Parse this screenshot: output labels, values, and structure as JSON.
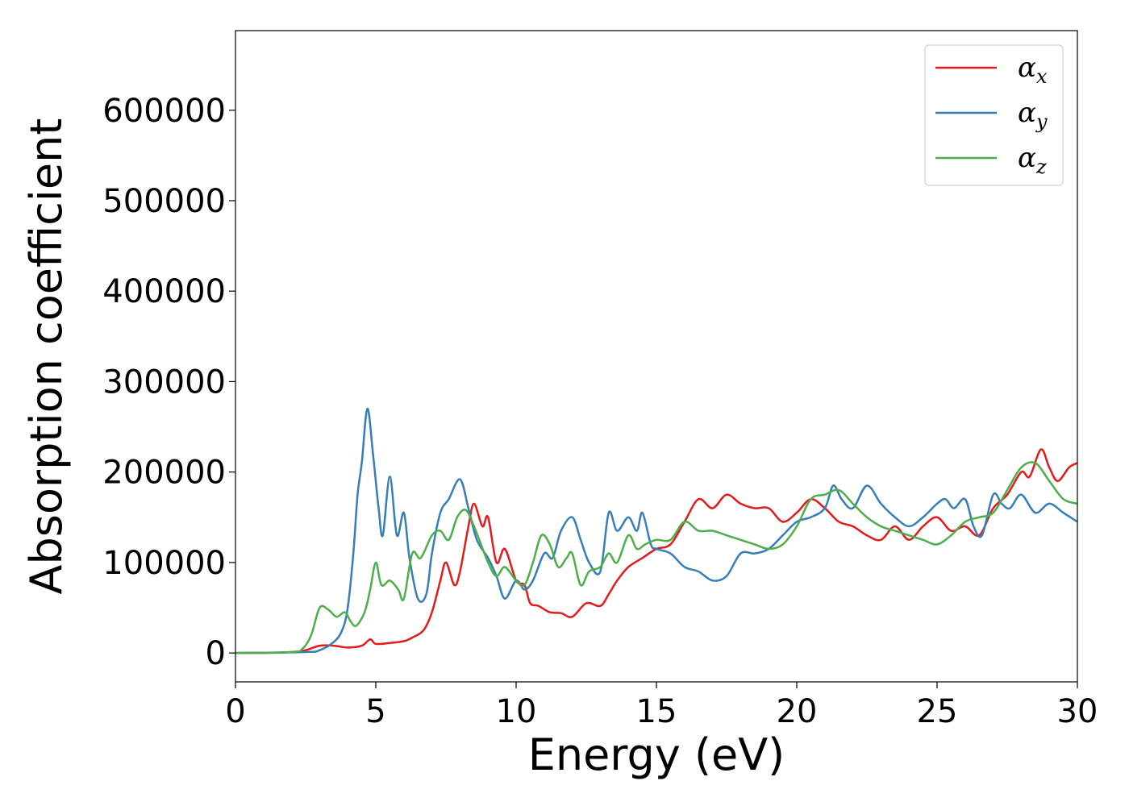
{
  "chart_data": {
    "type": "line",
    "title": "",
    "xlabel": "Energy (eV)",
    "ylabel": "Absorption coefficient",
    "xlim": [
      0,
      30
    ],
    "ylim": [
      -32000,
      688000
    ],
    "xticks": [
      0,
      5,
      10,
      15,
      20,
      25,
      30
    ],
    "xtick_labels": [
      "0",
      "5",
      "10",
      "15",
      "20",
      "25",
      "30"
    ],
    "yticks": [
      0,
      100000,
      200000,
      300000,
      400000,
      500000,
      600000
    ],
    "ytick_labels": [
      "0",
      "100000",
      "200000",
      "300000",
      "400000",
      "500000",
      "600000"
    ],
    "grid": false,
    "legend_position": "top-right",
    "series": [
      {
        "name": "α",
        "subscript": "x",
        "color": "#e41a1c",
        "points": [
          [
            0,
            0
          ],
          [
            1,
            0
          ],
          [
            2,
            1000
          ],
          [
            2.5,
            3000
          ],
          [
            3,
            8000
          ],
          [
            3.5,
            8000
          ],
          [
            4,
            6000
          ],
          [
            4.5,
            8000
          ],
          [
            4.8,
            15000
          ],
          [
            5,
            10000
          ],
          [
            5.5,
            11000
          ],
          [
            6,
            13000
          ],
          [
            6.3,
            17000
          ],
          [
            6.7,
            25000
          ],
          [
            7,
            45000
          ],
          [
            7.3,
            80000
          ],
          [
            7.5,
            100000
          ],
          [
            7.8,
            75000
          ],
          [
            8,
            90000
          ],
          [
            8.3,
            140000
          ],
          [
            8.5,
            165000
          ],
          [
            8.8,
            140000
          ],
          [
            9,
            150000
          ],
          [
            9.3,
            100000
          ],
          [
            9.6,
            115000
          ],
          [
            10,
            80000
          ],
          [
            10.3,
            75000
          ],
          [
            10.5,
            55000
          ],
          [
            10.8,
            52000
          ],
          [
            11.2,
            45000
          ],
          [
            11.6,
            44000
          ],
          [
            12,
            40000
          ],
          [
            12.5,
            55000
          ],
          [
            13,
            52000
          ],
          [
            13.3,
            65000
          ],
          [
            13.6,
            80000
          ],
          [
            14,
            95000
          ],
          [
            14.5,
            105000
          ],
          [
            15,
            115000
          ],
          [
            15.5,
            120000
          ],
          [
            16,
            145000
          ],
          [
            16.5,
            170000
          ],
          [
            17,
            160000
          ],
          [
            17.5,
            175000
          ],
          [
            18,
            165000
          ],
          [
            18.5,
            160000
          ],
          [
            19,
            160000
          ],
          [
            19.5,
            145000
          ],
          [
            20,
            155000
          ],
          [
            20.5,
            170000
          ],
          [
            21,
            160000
          ],
          [
            21.5,
            145000
          ],
          [
            22,
            140000
          ],
          [
            22.5,
            130000
          ],
          [
            23,
            125000
          ],
          [
            23.5,
            140000
          ],
          [
            24,
            125000
          ],
          [
            24.5,
            140000
          ],
          [
            25,
            150000
          ],
          [
            25.5,
            135000
          ],
          [
            26,
            140000
          ],
          [
            26.5,
            130000
          ],
          [
            27,
            160000
          ],
          [
            27.5,
            175000
          ],
          [
            28,
            200000
          ],
          [
            28.3,
            195000
          ],
          [
            28.7,
            225000
          ],
          [
            29,
            205000
          ],
          [
            29.3,
            190000
          ],
          [
            29.7,
            205000
          ],
          [
            30,
            210000
          ]
        ]
      },
      {
        "name": "α",
        "subscript": "y",
        "color": "#377eb8",
        "points": [
          [
            0,
            0
          ],
          [
            2.5,
            1000
          ],
          [
            3,
            3000
          ],
          [
            3.5,
            12000
          ],
          [
            3.8,
            25000
          ],
          [
            4,
            50000
          ],
          [
            4.2,
            110000
          ],
          [
            4.35,
            175000
          ],
          [
            4.5,
            210000
          ],
          [
            4.7,
            270000
          ],
          [
            4.9,
            220000
          ],
          [
            5.1,
            160000
          ],
          [
            5.25,
            130000
          ],
          [
            5.5,
            195000
          ],
          [
            5.75,
            130000
          ],
          [
            6,
            155000
          ],
          [
            6.2,
            105000
          ],
          [
            6.5,
            60000
          ],
          [
            6.8,
            65000
          ],
          [
            7,
            110000
          ],
          [
            7.3,
            155000
          ],
          [
            7.6,
            170000
          ],
          [
            8,
            192000
          ],
          [
            8.3,
            160000
          ],
          [
            8.6,
            125000
          ],
          [
            9,
            105000
          ],
          [
            9.3,
            85000
          ],
          [
            9.6,
            60000
          ],
          [
            10,
            80000
          ],
          [
            10.3,
            70000
          ],
          [
            10.6,
            80000
          ],
          [
            11,
            110000
          ],
          [
            11.3,
            105000
          ],
          [
            11.6,
            135000
          ],
          [
            12,
            150000
          ],
          [
            12.3,
            125000
          ],
          [
            12.6,
            100000
          ],
          [
            13,
            90000
          ],
          [
            13.3,
            155000
          ],
          [
            13.6,
            135000
          ],
          [
            14,
            150000
          ],
          [
            14.3,
            135000
          ],
          [
            14.5,
            155000
          ],
          [
            14.8,
            120000
          ],
          [
            15,
            115000
          ],
          [
            15.5,
            110000
          ],
          [
            16,
            95000
          ],
          [
            16.5,
            90000
          ],
          [
            17,
            80000
          ],
          [
            17.5,
            85000
          ],
          [
            18,
            110000
          ],
          [
            18.5,
            110000
          ],
          [
            19,
            115000
          ],
          [
            19.5,
            130000
          ],
          [
            20,
            145000
          ],
          [
            20.5,
            150000
          ],
          [
            21,
            160000
          ],
          [
            21.3,
            185000
          ],
          [
            21.6,
            170000
          ],
          [
            22,
            160000
          ],
          [
            22.5,
            185000
          ],
          [
            23,
            165000
          ],
          [
            23.5,
            150000
          ],
          [
            24,
            140000
          ],
          [
            24.5,
            150000
          ],
          [
            25,
            165000
          ],
          [
            25.3,
            170000
          ],
          [
            25.6,
            160000
          ],
          [
            26,
            170000
          ],
          [
            26.3,
            140000
          ],
          [
            26.6,
            130000
          ],
          [
            27,
            175000
          ],
          [
            27.3,
            165000
          ],
          [
            27.6,
            160000
          ],
          [
            28,
            175000
          ],
          [
            28.5,
            155000
          ],
          [
            29,
            165000
          ],
          [
            29.5,
            155000
          ],
          [
            30,
            145000
          ]
        ]
      },
      {
        "name": "α",
        "subscript": "z",
        "color": "#4daf4a",
        "points": [
          [
            0,
            0
          ],
          [
            2,
            1000
          ],
          [
            2.4,
            5000
          ],
          [
            2.7,
            20000
          ],
          [
            3,
            50000
          ],
          [
            3.3,
            48000
          ],
          [
            3.6,
            40000
          ],
          [
            3.9,
            45000
          ],
          [
            4.1,
            35000
          ],
          [
            4.3,
            30000
          ],
          [
            4.6,
            45000
          ],
          [
            4.8,
            70000
          ],
          [
            5,
            100000
          ],
          [
            5.2,
            75000
          ],
          [
            5.5,
            80000
          ],
          [
            5.8,
            70000
          ],
          [
            6,
            60000
          ],
          [
            6.3,
            110000
          ],
          [
            6.6,
            105000
          ],
          [
            7,
            130000
          ],
          [
            7.3,
            135000
          ],
          [
            7.6,
            125000
          ],
          [
            7.9,
            150000
          ],
          [
            8.2,
            158000
          ],
          [
            8.5,
            140000
          ],
          [
            9,
            100000
          ],
          [
            9.3,
            85000
          ],
          [
            9.6,
            95000
          ],
          [
            10,
            80000
          ],
          [
            10.3,
            75000
          ],
          [
            10.6,
            100000
          ],
          [
            10.9,
            130000
          ],
          [
            11.2,
            120000
          ],
          [
            11.5,
            95000
          ],
          [
            11.8,
            105000
          ],
          [
            12,
            110000
          ],
          [
            12.3,
            75000
          ],
          [
            12.6,
            90000
          ],
          [
            13,
            95000
          ],
          [
            13.3,
            110000
          ],
          [
            13.6,
            100000
          ],
          [
            14,
            130000
          ],
          [
            14.3,
            115000
          ],
          [
            14.6,
            120000
          ],
          [
            15,
            125000
          ],
          [
            15.5,
            125000
          ],
          [
            16,
            145000
          ],
          [
            16.5,
            135000
          ],
          [
            17,
            135000
          ],
          [
            17.5,
            130000
          ],
          [
            18,
            125000
          ],
          [
            18.5,
            120000
          ],
          [
            19,
            115000
          ],
          [
            19.5,
            120000
          ],
          [
            20,
            140000
          ],
          [
            20.5,
            170000
          ],
          [
            21,
            175000
          ],
          [
            21.5,
            180000
          ],
          [
            22,
            165000
          ],
          [
            22.5,
            150000
          ],
          [
            23,
            140000
          ],
          [
            23.5,
            135000
          ],
          [
            24,
            130000
          ],
          [
            24.5,
            125000
          ],
          [
            25,
            120000
          ],
          [
            25.5,
            130000
          ],
          [
            26,
            145000
          ],
          [
            26.5,
            150000
          ],
          [
            27,
            155000
          ],
          [
            27.5,
            180000
          ],
          [
            28,
            205000
          ],
          [
            28.5,
            210000
          ],
          [
            29,
            190000
          ],
          [
            29.5,
            170000
          ],
          [
            30,
            165000
          ]
        ]
      }
    ]
  }
}
